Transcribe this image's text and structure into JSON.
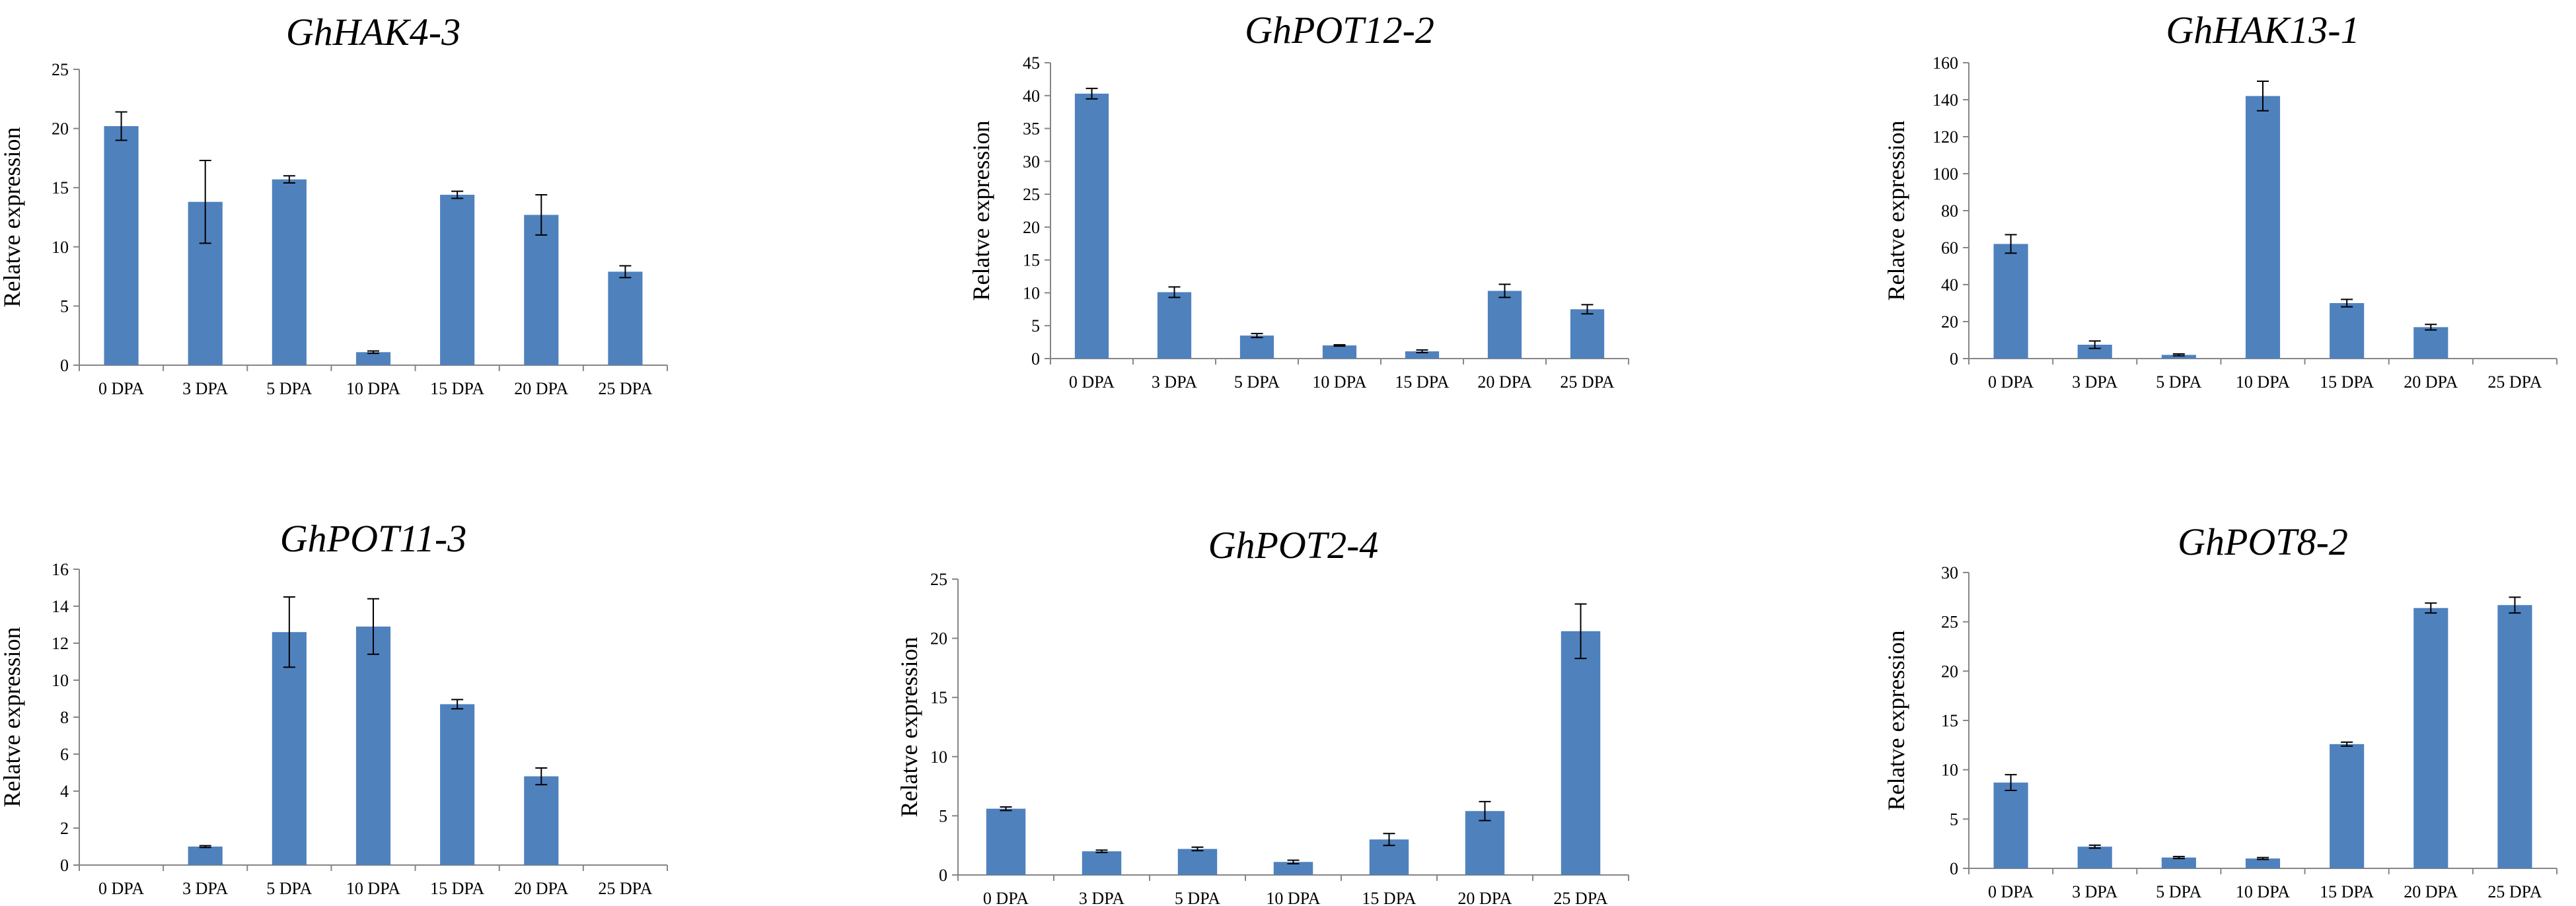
{
  "colors": {
    "bar": "#4f81bd",
    "axis": "#868686",
    "error": "#000000"
  },
  "chart_data": [
    {
      "type": "bar",
      "title": "GhHAK4-3",
      "ylabel": "Relatve expression",
      "xlabel": "",
      "categories": [
        "0 DPA",
        "3 DPA",
        "5 DPA",
        "10 DPA",
        "15 DPA",
        "20 DPA",
        "25 DPA"
      ],
      "values": [
        20.2,
        13.8,
        15.7,
        1.1,
        14.4,
        12.7,
        7.9
      ],
      "errors": [
        1.2,
        3.5,
        0.3,
        0.1,
        0.3,
        1.7,
        0.5
      ],
      "ylim": [
        0,
        25
      ],
      "yticks": [
        "0",
        "5",
        "10",
        "15",
        "20",
        "25"
      ],
      "grid": false
    },
    {
      "type": "bar",
      "title": "GhPOT12-2",
      "ylabel": "Relatve expression",
      "xlabel": "",
      "categories": [
        "0 DPA",
        "3 DPA",
        "5 DPA",
        "10 DPA",
        "15 DPA",
        "20 DPA",
        "25 DPA"
      ],
      "values": [
        40.3,
        10.1,
        3.5,
        2.0,
        1.1,
        10.3,
        7.5
      ],
      "errors": [
        0.8,
        0.8,
        0.3,
        0.1,
        0.2,
        1.0,
        0.7
      ],
      "ylim": [
        0,
        45
      ],
      "yticks": [
        "0",
        "5",
        "10",
        "15",
        "20",
        "25",
        "30",
        "35",
        "40",
        "45"
      ],
      "grid": false
    },
    {
      "type": "bar",
      "title": "GhHAK13-1",
      "ylabel": "Relatve expression",
      "xlabel": "",
      "categories": [
        "0 DPA",
        "3 DPA",
        "5 DPA",
        "10 DPA",
        "15 DPA",
        "20 DPA",
        "25 DPA"
      ],
      "values": [
        62,
        7.5,
        2,
        142,
        30,
        17,
        0
      ],
      "errors": [
        5,
        2,
        0.5,
        8,
        2,
        1.5,
        0
      ],
      "ylim": [
        0,
        160
      ],
      "yticks": [
        "0",
        "20",
        "40",
        "60",
        "80",
        "100",
        "120",
        "140",
        "160"
      ],
      "grid": false
    },
    {
      "type": "bar",
      "title": "GhPOT11-3",
      "ylabel": "Relatve expression",
      "xlabel": "",
      "categories": [
        "0 DPA",
        "3 DPA",
        "5 DPA",
        "10 DPA",
        "15 DPA",
        "20 DPA",
        "25 DPA"
      ],
      "values": [
        0,
        1.0,
        12.6,
        12.9,
        8.7,
        4.8,
        0
      ],
      "errors": [
        0,
        0.05,
        1.9,
        1.5,
        0.25,
        0.45,
        0
      ],
      "ylim": [
        0,
        16
      ],
      "yticks": [
        "0",
        "2",
        "4",
        "6",
        "8",
        "10",
        "12",
        "14",
        "16"
      ],
      "grid": false
    },
    {
      "type": "bar",
      "title": "GhPOT2-4",
      "ylabel": "Relatve expression",
      "xlabel": "",
      "categories": [
        "0 DPA",
        "3 DPA",
        "5 DPA",
        "10 DPA",
        "15 DPA",
        "20 DPA",
        "25 DPA"
      ],
      "values": [
        5.6,
        2.0,
        2.2,
        1.1,
        3.0,
        5.4,
        20.6
      ],
      "errors": [
        0.15,
        0.1,
        0.15,
        0.15,
        0.5,
        0.8,
        2.3
      ],
      "ylim": [
        0,
        25
      ],
      "yticks": [
        "0",
        "5",
        "10",
        "15",
        "20",
        "25"
      ],
      "grid": false
    },
    {
      "type": "bar",
      "title": "GhPOT8-2",
      "ylabel": "Relatve expression",
      "xlabel": "",
      "categories": [
        "0 DPA",
        "3 DPA",
        "5 DPA",
        "10 DPA",
        "15 DPA",
        "20 DPA",
        "25 DPA"
      ],
      "values": [
        8.7,
        2.2,
        1.1,
        1.0,
        12.6,
        26.4,
        26.7
      ],
      "errors": [
        0.8,
        0.15,
        0.1,
        0.1,
        0.2,
        0.5,
        0.8
      ],
      "ylim": [
        0,
        30
      ],
      "yticks": [
        "0",
        "5",
        "10",
        "15",
        "20",
        "25",
        "30"
      ],
      "grid": false
    }
  ]
}
